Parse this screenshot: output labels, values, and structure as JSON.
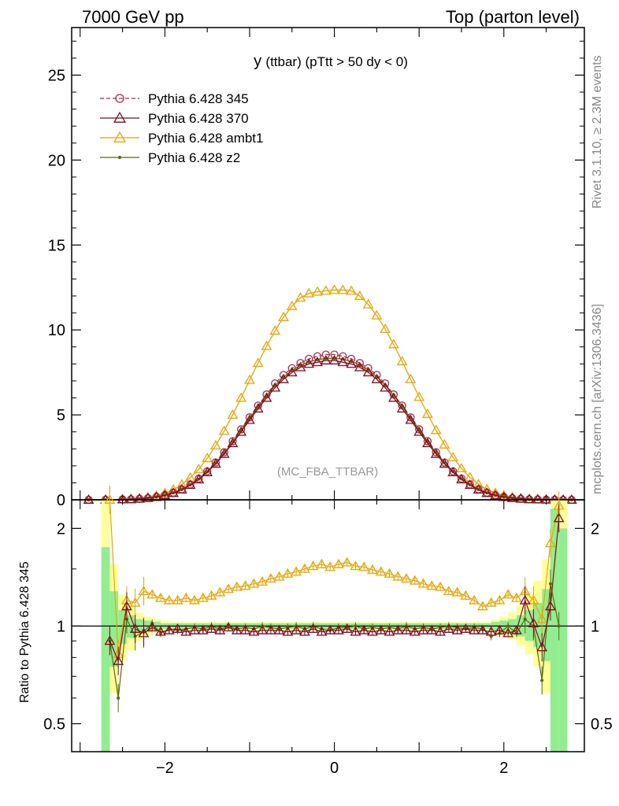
{
  "header": {
    "left": "7000 GeV pp",
    "right": "Top (parton level)"
  },
  "side_labels": {
    "rivet": "Rivet 3.1.10, ≥ 2.3M events",
    "mcplots": "mcplots.cern.ch [arXiv:1306.3436]"
  },
  "plot_title": {
    "main": "y",
    "rest": "(ttbar) (pTtt > 50 dy < 0)"
  },
  "watermark": "(MC_FBA_TTBAR)",
  "ratio_ylabel": "Ratio to Pythia 6.428 345",
  "colors": {
    "p345": "#b5284a",
    "p370": "#8b0a1e",
    "ambt1": "#f0a500",
    "z2": "#5a6e0a",
    "band_green": "#90ee90",
    "band_yellow": "#ffff99"
  },
  "chart_data": [
    {
      "type": "line",
      "panel": "main",
      "xlim": [
        -3.1,
        2.95
      ],
      "ylim": [
        0,
        27.8
      ],
      "x_ticks": [
        "−2",
        "0",
        "2"
      ],
      "y_ticks": [
        "0",
        "5",
        "10",
        "15",
        "20",
        "25"
      ],
      "legend_position": "top-left",
      "x": [
        -2.9,
        -2.7,
        -2.5,
        -2.4,
        -2.3,
        -2.2,
        -2.1,
        -2.0,
        -1.9,
        -1.8,
        -1.7,
        -1.6,
        -1.5,
        -1.4,
        -1.3,
        -1.2,
        -1.1,
        -1.0,
        -0.9,
        -0.8,
        -0.7,
        -0.6,
        -0.5,
        -0.4,
        -0.3,
        -0.2,
        -0.1,
        0.0,
        0.1,
        0.2,
        0.3,
        0.4,
        0.5,
        0.6,
        0.7,
        0.8,
        0.9,
        1.0,
        1.1,
        1.2,
        1.3,
        1.4,
        1.5,
        1.6,
        1.7,
        1.8,
        1.9,
        2.0,
        2.1,
        2.2,
        2.3,
        2.4,
        2.5,
        2.6,
        2.7,
        2.8
      ],
      "series": [
        {
          "name": "Pythia 6.428 345",
          "values": [
            0,
            0.005,
            0.02,
            0.03,
            0.06,
            0.1,
            0.17,
            0.27,
            0.42,
            0.62,
            0.9,
            1.25,
            1.68,
            2.2,
            2.8,
            3.45,
            4.15,
            4.85,
            5.55,
            6.2,
            6.85,
            7.35,
            7.75,
            8.05,
            8.3,
            8.45,
            8.55,
            8.55,
            8.45,
            8.3,
            8.05,
            7.75,
            7.35,
            6.85,
            6.2,
            5.55,
            4.85,
            4.15,
            3.45,
            2.8,
            2.2,
            1.68,
            1.25,
            0.9,
            0.62,
            0.42,
            0.27,
            0.17,
            0.1,
            0.06,
            0.03,
            0.02,
            0.01,
            0.005,
            0,
            0
          ]
        },
        {
          "name": "Pythia 6.428 370",
          "values": [
            0,
            0.005,
            0.02,
            0.03,
            0.06,
            0.1,
            0.16,
            0.26,
            0.4,
            0.6,
            0.87,
            1.2,
            1.62,
            2.12,
            2.7,
            3.33,
            4.0,
            4.7,
            5.37,
            6.0,
            6.6,
            7.1,
            7.5,
            7.8,
            8.0,
            8.1,
            8.2,
            8.2,
            8.1,
            8.0,
            7.8,
            7.5,
            7.1,
            6.6,
            6.0,
            5.37,
            4.7,
            4.0,
            3.33,
            2.7,
            2.12,
            1.62,
            1.2,
            0.87,
            0.6,
            0.4,
            0.26,
            0.16,
            0.1,
            0.06,
            0.03,
            0.02,
            0.01,
            0.005,
            0,
            0
          ]
        },
        {
          "name": "Pythia 6.428 ambt1",
          "values": [
            0,
            0.005,
            0.02,
            0.04,
            0.08,
            0.14,
            0.24,
            0.39,
            0.6,
            0.9,
            1.3,
            1.8,
            2.45,
            3.2,
            4.05,
            5.0,
            6.0,
            7.05,
            8.05,
            9.05,
            9.95,
            10.75,
            11.4,
            11.9,
            12.15,
            12.25,
            12.3,
            12.35,
            12.35,
            12.3,
            12.0,
            11.5,
            10.85,
            10.05,
            9.15,
            8.15,
            7.1,
            6.05,
            5.05,
            4.1,
            3.25,
            2.5,
            1.85,
            1.32,
            0.92,
            0.62,
            0.4,
            0.25,
            0.15,
            0.09,
            0.05,
            0.03,
            0.015,
            0.007,
            0.002,
            0
          ]
        },
        {
          "name": "Pythia 6.428 z2",
          "values": [
            0,
            0.005,
            0.02,
            0.03,
            0.06,
            0.1,
            0.17,
            0.27,
            0.41,
            0.61,
            0.88,
            1.22,
            1.65,
            2.16,
            2.75,
            3.4,
            4.08,
            4.78,
            5.47,
            6.12,
            6.72,
            7.22,
            7.62,
            7.92,
            8.12,
            8.25,
            8.32,
            8.33,
            8.28,
            8.15,
            7.95,
            7.65,
            7.25,
            6.75,
            6.15,
            5.5,
            4.8,
            4.1,
            3.42,
            2.78,
            2.18,
            1.67,
            1.24,
            0.89,
            0.61,
            0.41,
            0.27,
            0.17,
            0.1,
            0.06,
            0.03,
            0.02,
            0.01,
            0.005,
            0,
            0
          ]
        }
      ]
    },
    {
      "type": "line",
      "panel": "ratio",
      "ylabel": "Ratio to Pythia 6.428 345",
      "xlim": [
        -3.1,
        2.95
      ],
      "log_y": true,
      "ylim": [
        0.41,
        2.45
      ],
      "x_ticks": [
        "−2",
        "0",
        "2"
      ],
      "y_ticks": [
        "0.5",
        "1",
        "2"
      ],
      "x": [
        -2.65,
        -2.55,
        -2.45,
        -2.35,
        -2.25,
        -2.15,
        -2.05,
        -1.95,
        -1.85,
        -1.75,
        -1.65,
        -1.55,
        -1.45,
        -1.35,
        -1.25,
        -1.15,
        -1.05,
        -0.95,
        -0.85,
        -0.75,
        -0.65,
        -0.55,
        -0.45,
        -0.35,
        -0.25,
        -0.15,
        -0.05,
        0.05,
        0.15,
        0.25,
        0.35,
        0.45,
        0.55,
        0.65,
        0.75,
        0.85,
        0.95,
        1.05,
        1.15,
        1.25,
        1.35,
        1.45,
        1.55,
        1.65,
        1.75,
        1.85,
        1.95,
        2.05,
        2.15,
        2.25,
        2.35,
        2.45,
        2.55,
        2.65
      ],
      "band": {
        "x_edges": [
          -2.75,
          -2.65,
          -2.55,
          -2.45,
          -2.35,
          -2.25,
          -2.15,
          -2.05,
          -1.95,
          1.85,
          1.95,
          2.05,
          2.15,
          2.25,
          2.35,
          2.45,
          2.55,
          2.65,
          2.75
        ],
        "green_low": [
          0.38,
          0.75,
          0.88,
          0.92,
          0.95,
          0.96,
          0.97,
          0.98,
          0.98,
          0.97,
          0.96,
          0.95,
          0.93,
          0.9,
          0.86,
          0.78,
          0.38,
          0.38
        ],
        "green_high": [
          1.75,
          1.28,
          1.12,
          1.08,
          1.05,
          1.04,
          1.03,
          1.02,
          1.02,
          1.03,
          1.04,
          1.05,
          1.08,
          1.12,
          1.18,
          1.3,
          2.3,
          2.0
        ],
        "yellow_low": [
          0.38,
          0.62,
          0.78,
          0.84,
          0.9,
          0.93,
          0.95,
          0.96,
          0.97,
          0.95,
          0.93,
          0.91,
          0.87,
          0.82,
          0.75,
          0.62,
          0.38,
          0.38
        ],
        "yellow_high": [
          2.45,
          1.55,
          1.25,
          1.16,
          1.1,
          1.07,
          1.05,
          1.04,
          1.03,
          1.05,
          1.07,
          1.1,
          1.16,
          1.25,
          1.38,
          1.6,
          2.45,
          2.45
        ]
      },
      "series": [
        {
          "name": "Pythia 6.428 370",
          "values": [
            0.9,
            0.78,
            1.15,
            0.98,
            0.95,
            0.99,
            0.96,
            0.97,
            0.98,
            0.96,
            0.97,
            0.97,
            0.98,
            0.97,
            0.99,
            0.97,
            0.97,
            0.96,
            0.97,
            0.97,
            0.97,
            0.96,
            0.97,
            0.96,
            0.98,
            0.96,
            0.97,
            0.97,
            0.98,
            0.96,
            0.97,
            0.96,
            0.97,
            0.96,
            0.97,
            0.97,
            0.96,
            0.97,
            0.97,
            0.96,
            0.98,
            0.97,
            0.98,
            0.97,
            0.97,
            0.96,
            0.97,
            0.95,
            0.97,
            1.2,
            1.02,
            0.86,
            1.15,
            2.15
          ]
        },
        {
          "name": "Pythia 6.428 ambt1",
          "values": [
            2.5,
            0.82,
            1.2,
            1.18,
            1.28,
            1.25,
            1.22,
            1.2,
            1.2,
            1.22,
            1.2,
            1.22,
            1.24,
            1.27,
            1.3,
            1.32,
            1.33,
            1.35,
            1.37,
            1.4,
            1.42,
            1.45,
            1.47,
            1.5,
            1.53,
            1.55,
            1.52,
            1.55,
            1.57,
            1.53,
            1.52,
            1.49,
            1.47,
            1.45,
            1.42,
            1.4,
            1.38,
            1.35,
            1.33,
            1.32,
            1.28,
            1.27,
            1.24,
            1.2,
            1.15,
            1.18,
            1.2,
            1.25,
            1.22,
            1.28,
            1.2,
            1.05,
            1.8,
            2.35
          ]
        },
        {
          "name": "Pythia 6.428 z2",
          "values": [
            0.9,
            0.6,
            1.05,
            0.93,
            0.96,
            1.02,
            0.95,
            0.98,
            0.97,
            0.98,
            0.99,
            0.98,
            1.0,
            0.98,
            1.0,
            0.98,
            0.99,
            0.98,
            1.0,
            0.99,
            0.98,
            0.99,
            1.0,
            0.98,
            1.0,
            0.98,
            0.97,
            0.99,
            0.99,
            1.0,
            0.98,
            0.99,
            0.98,
            0.99,
            0.98,
            1.0,
            0.98,
            0.99,
            0.98,
            0.99,
            1.0,
            0.99,
            0.98,
            0.99,
            0.98,
            0.93,
            0.95,
            1.0,
            0.95,
            1.05,
            1.0,
            0.68,
            1.35,
            1.0
          ]
        }
      ]
    }
  ]
}
